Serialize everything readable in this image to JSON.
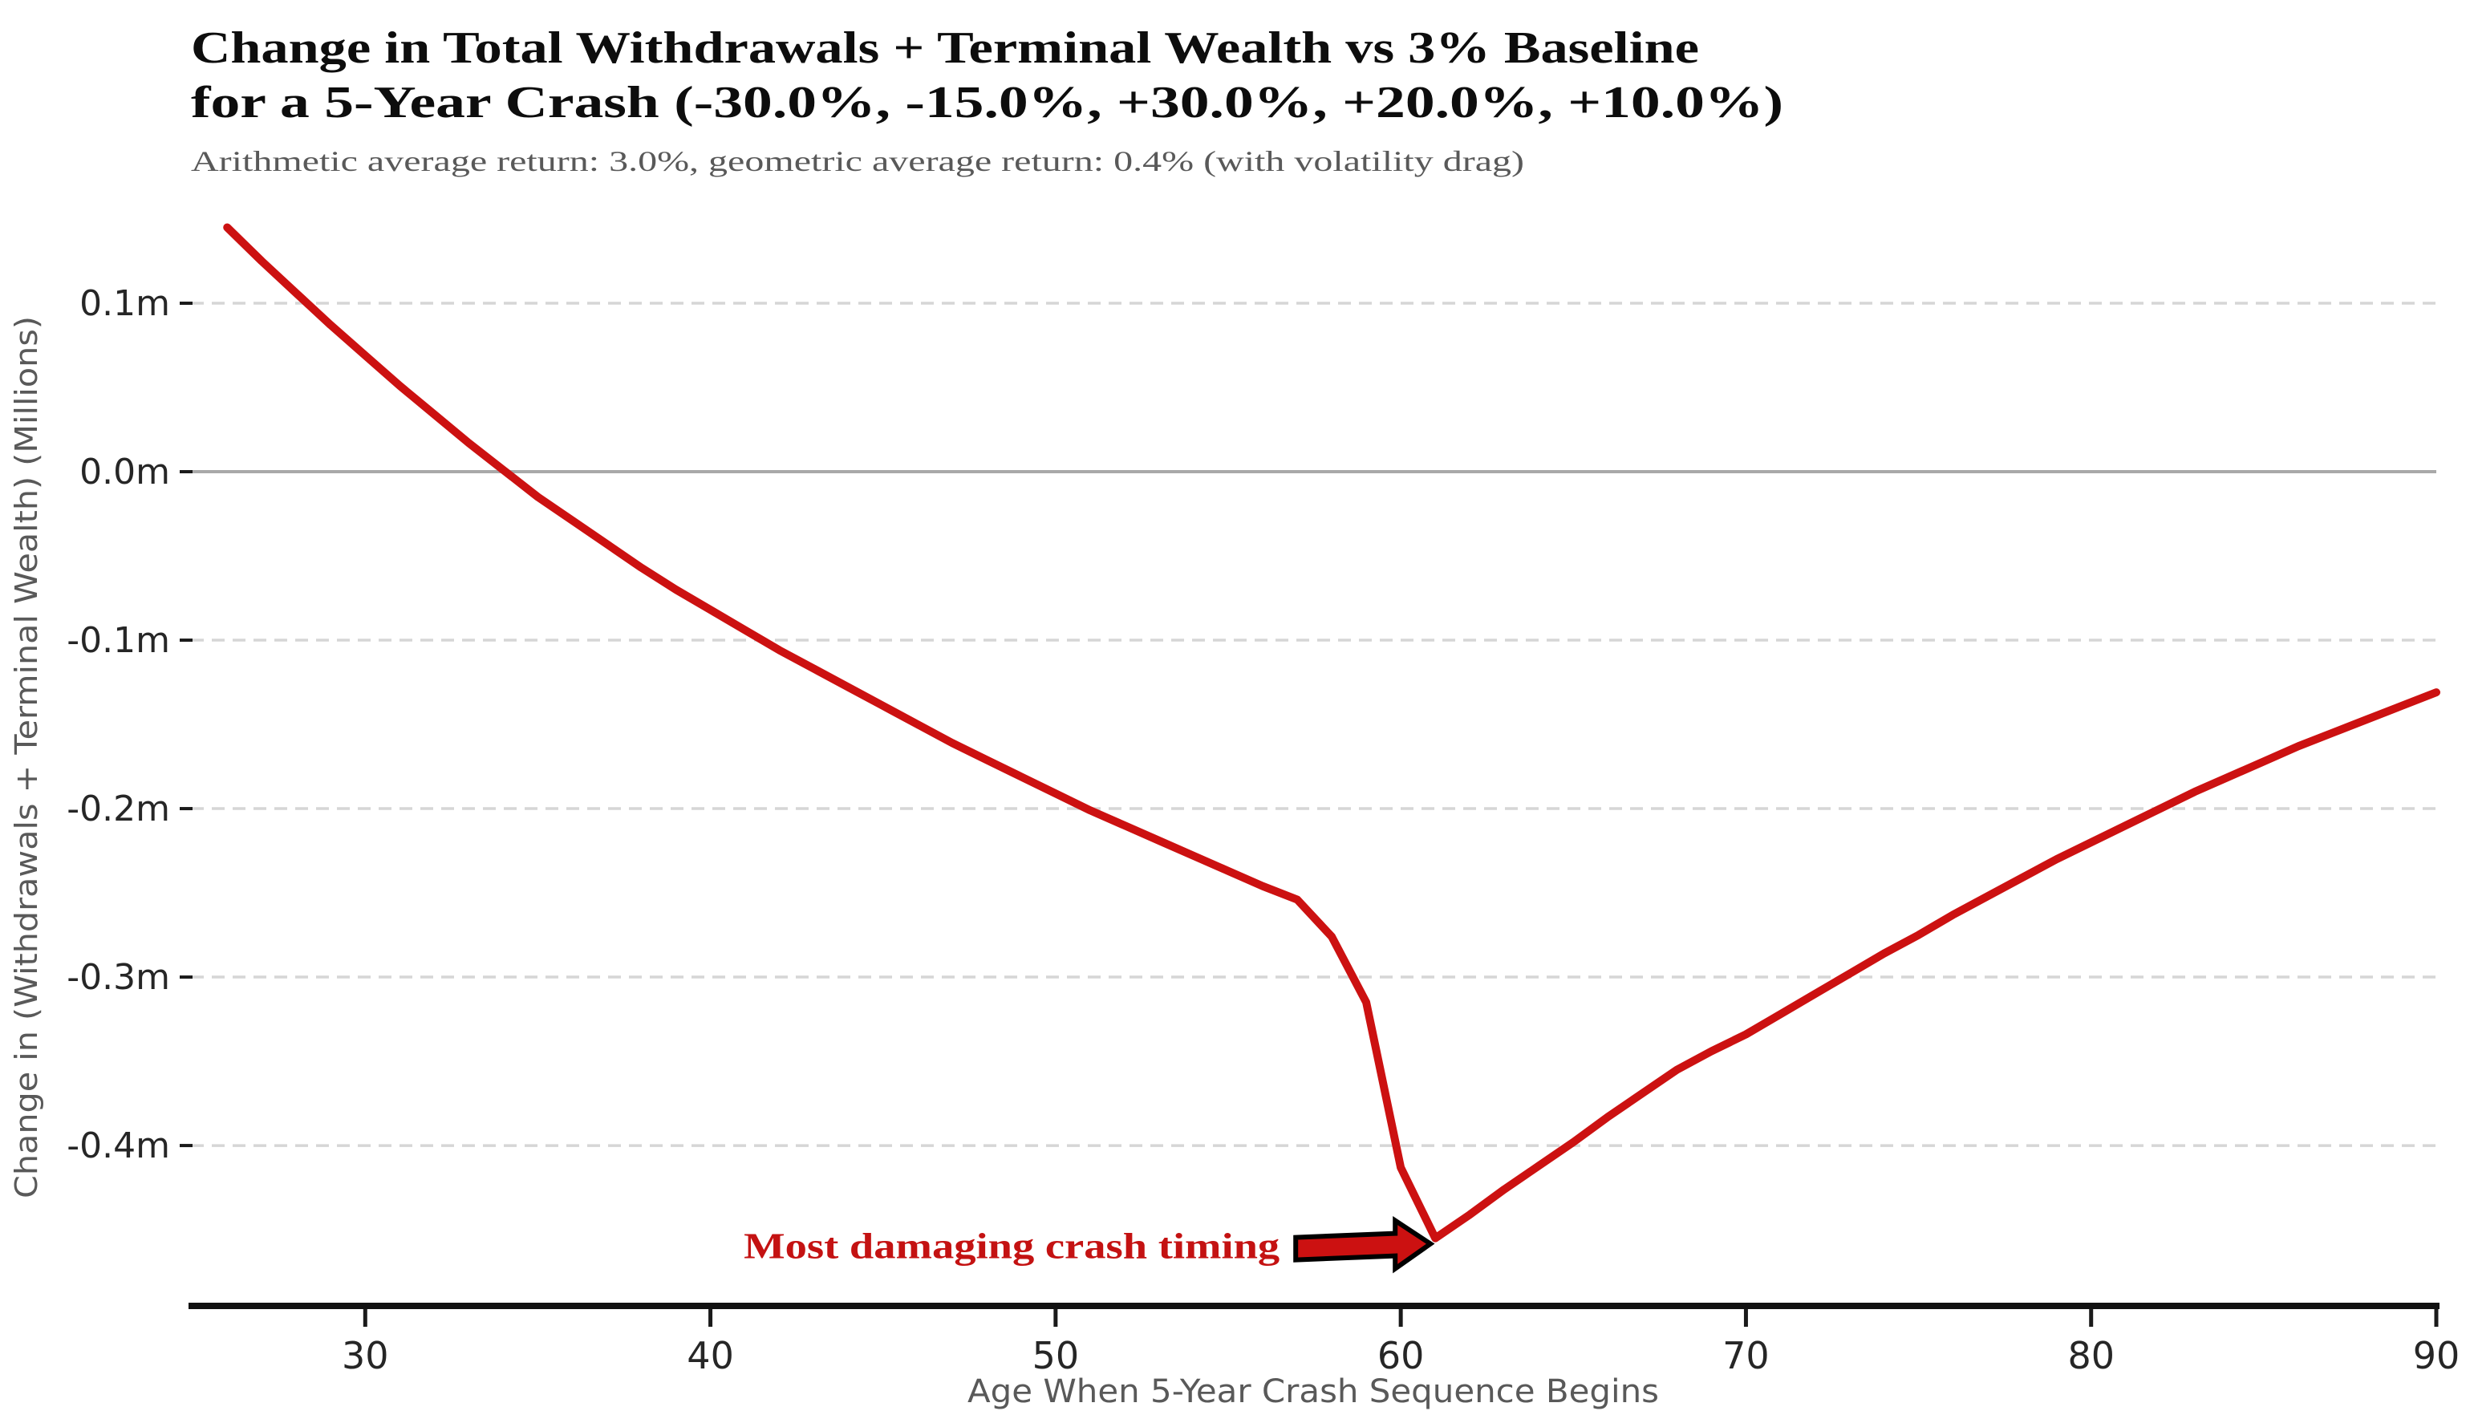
{
  "header": {
    "title_line1": "Change in Total Withdrawals + Terminal Wealth vs 3% Baseline",
    "title_line2": "for a 5-Year Crash (-30.0%, -15.0%, +30.0%, +20.0%, +10.0%)",
    "subtitle": "Arithmetic average return: 3.0%, geometric average return: 0.4% (with volatility drag)"
  },
  "colors": {
    "series_red": "#cc1111",
    "annotation_red": "#c41212",
    "grid_dashed": "#d6d6d6",
    "zero_line": "#a9a9a9",
    "spine_black": "#111111",
    "muted_gray": "#595959"
  },
  "chart_data": {
    "type": "line",
    "title": "Change in Total Withdrawals + Terminal Wealth vs 3% Baseline for a 5-Year Crash (-30.0%, -15.0%, +30.0%, +20.0%, +10.0%)",
    "subtitle": "Arithmetic average return: 3.0%, geometric average return: 0.4% (with volatility drag)",
    "xlabel": "Age When 5-Year Crash Sequence Begins",
    "ylabel": "Change in (Withdrawals + Terminal Wealth) (Millions)",
    "legend_position": "none",
    "grid": {
      "horizontal_dashed": true,
      "zero_line_solid": true,
      "vertical": false
    },
    "xlim": [
      24.95,
      90
    ],
    "ylim": [
      -0.4952,
      0.1562
    ],
    "x_ticks": [
      30,
      40,
      50,
      60,
      70,
      80,
      90
    ],
    "y_ticks": [
      {
        "value": 0.1,
        "label": "0.1m"
      },
      {
        "value": 0.0,
        "label": "0.0m"
      },
      {
        "value": -0.1,
        "label": "-0.1m"
      },
      {
        "value": -0.2,
        "label": "-0.2m"
      },
      {
        "value": -0.3,
        "label": "-0.3m"
      },
      {
        "value": -0.4,
        "label": "-0.4m"
      }
    ],
    "series": [
      {
        "name": "Change in withdrawals + terminal wealth vs 3% baseline (millions)",
        "color": "#cc1111",
        "x": [
          26,
          27,
          28,
          29,
          30,
          31,
          32,
          33,
          34,
          35,
          36,
          37,
          38,
          39,
          40,
          41,
          42,
          43,
          44,
          45,
          46,
          47,
          48,
          49,
          50,
          51,
          52,
          53,
          54,
          55,
          56,
          57,
          58,
          59,
          60,
          61,
          62,
          63,
          64,
          65,
          66,
          67,
          68,
          69,
          70,
          71,
          72,
          73,
          74,
          75,
          76,
          77,
          78,
          79,
          80,
          81,
          82,
          83,
          84,
          85,
          86,
          87,
          88,
          89,
          90
        ],
        "y": [
          0.145,
          0.125,
          0.106,
          0.087,
          0.069,
          0.051,
          0.034,
          0.017,
          0.001,
          -0.015,
          -0.029,
          -0.043,
          -0.057,
          -0.07,
          -0.082,
          -0.094,
          -0.106,
          -0.117,
          -0.128,
          -0.139,
          -0.15,
          -0.161,
          -0.171,
          -0.181,
          -0.191,
          -0.201,
          -0.21,
          -0.219,
          -0.228,
          -0.237,
          -0.246,
          -0.254,
          -0.276,
          -0.315,
          -0.413,
          -0.455,
          -0.441,
          -0.426,
          -0.412,
          -0.398,
          -0.383,
          -0.369,
          -0.355,
          -0.344,
          -0.334,
          -0.322,
          -0.31,
          -0.298,
          -0.286,
          -0.275,
          -0.263,
          -0.252,
          -0.241,
          -0.23,
          -0.22,
          -0.21,
          -0.2,
          -0.19,
          -0.181,
          -0.172,
          -0.163,
          -0.155,
          -0.147,
          -0.139,
          -0.131
        ]
      }
    ],
    "annotation": {
      "text": "Most damaging crash timing",
      "points_to_x": 61,
      "points_to_y": -0.455
    }
  }
}
